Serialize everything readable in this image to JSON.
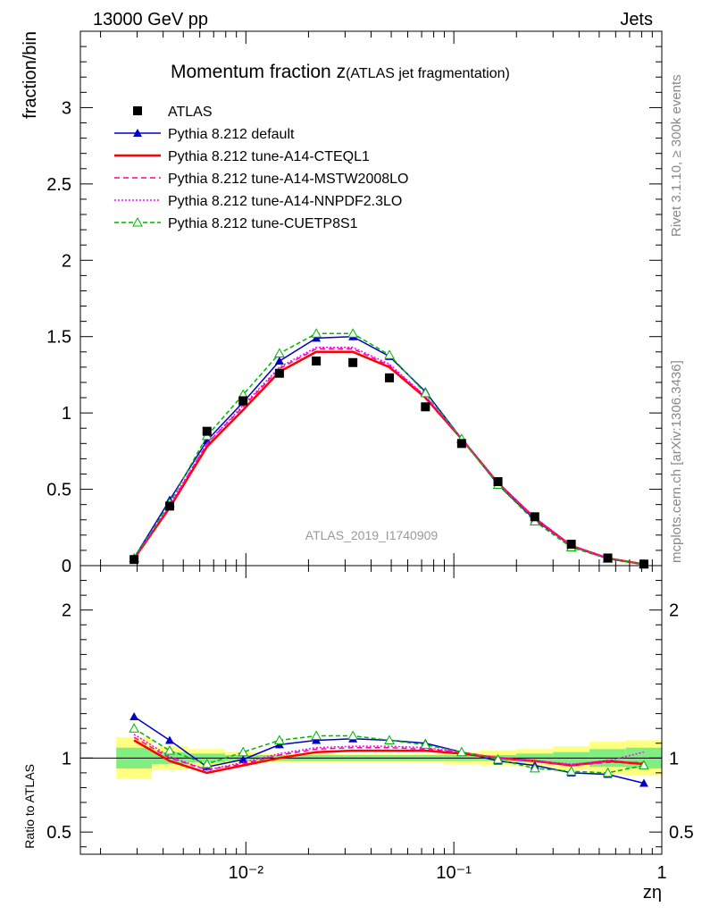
{
  "header": {
    "left": "13000 GeV pp",
    "right": "Jets",
    "side_rivet": "Rivet 3.1.10, ≥ 300k events",
    "side_site": "mcplots.cern.ch [arXiv:1306.3436]"
  },
  "chart_data": {
    "type": "line",
    "title_main": "Momentum fraction z",
    "title_sub": "(ATLAS jet fragmentation)",
    "analysis_label": "ATLAS_2019_I1740909",
    "xlabel": "zη",
    "ylabel": "fraction/bin",
    "ratio_ylabel": "Ratio to ATLAS",
    "xscale": "log",
    "xlim": [
      0.0016,
      1.0
    ],
    "ylim": [
      0,
      3.5
    ],
    "ratio_ylim": [
      0.35,
      2.3
    ],
    "x_tick_labels": [
      "10⁻²",
      "10⁻¹",
      "1"
    ],
    "y_tick_labels": [
      "0",
      "0.5",
      "1",
      "1.5",
      "2",
      "2.5",
      "3"
    ],
    "ratio_y_tick_labels": [
      "0.5",
      "1",
      "2"
    ],
    "x": [
      0.0029,
      0.0043,
      0.0065,
      0.0097,
      0.0145,
      0.0218,
      0.0327,
      0.049,
      0.073,
      0.109,
      0.163,
      0.245,
      0.367,
      0.55,
      0.82
    ],
    "data": {
      "name": "ATLAS",
      "values": [
        0.04,
        0.39,
        0.88,
        1.08,
        1.26,
        1.34,
        1.33,
        1.23,
        1.04,
        0.8,
        0.55,
        0.32,
        0.14,
        0.05,
        0.01
      ]
    },
    "series": [
      {
        "name": "Pythia 8.212 default",
        "color": "#0000c8",
        "dash": "",
        "marker": "triangle",
        "values": [
          0.05,
          0.43,
          0.82,
          1.07,
          1.34,
          1.49,
          1.5,
          1.37,
          1.14,
          0.83,
          0.53,
          0.3,
          0.13,
          0.045,
          0.008
        ],
        "ratio": [
          1.28,
          1.12,
          0.94,
          0.99,
          1.09,
          1.12,
          1.13,
          1.12,
          1.1,
          1.04,
          0.98,
          0.95,
          0.9,
          0.89,
          0.83
        ]
      },
      {
        "name": "Pythia 8.212 tune-A14-CTEQL1",
        "color": "#ff0000",
        "dash": "",
        "marker": "none",
        "values": [
          0.045,
          0.38,
          0.78,
          1.02,
          1.27,
          1.4,
          1.4,
          1.3,
          1.1,
          0.83,
          0.54,
          0.31,
          0.13,
          0.048,
          0.009
        ],
        "ratio": [
          1.12,
          0.98,
          0.9,
          0.95,
          1.0,
          1.04,
          1.05,
          1.05,
          1.05,
          1.03,
          1.0,
          0.98,
          0.95,
          0.98,
          0.96
        ]
      },
      {
        "name": "Pythia 8.212 tune-A14-MSTW2008LO",
        "color": "#ff00a0",
        "dash": "6,4",
        "marker": "none",
        "values": [
          0.046,
          0.39,
          0.8,
          1.04,
          1.29,
          1.42,
          1.42,
          1.31,
          1.11,
          0.83,
          0.54,
          0.31,
          0.13,
          0.048,
          0.01
        ],
        "ratio": [
          1.14,
          1.0,
          0.92,
          0.96,
          1.02,
          1.06,
          1.07,
          1.07,
          1.06,
          1.04,
          1.0,
          0.98,
          0.95,
          0.97,
          0.97
        ]
      },
      {
        "name": "Pythia 8.212 tune-A14-NNPDF2.3LO",
        "color": "#ff00ff",
        "dash": "2,2",
        "marker": "none",
        "values": [
          0.047,
          0.4,
          0.8,
          1.05,
          1.3,
          1.43,
          1.43,
          1.32,
          1.11,
          0.83,
          0.54,
          0.31,
          0.13,
          0.048,
          0.01
        ],
        "ratio": [
          1.16,
          1.01,
          0.92,
          0.97,
          1.03,
          1.07,
          1.08,
          1.08,
          1.07,
          1.04,
          1.0,
          0.98,
          0.96,
          0.98,
          1.04
        ]
      },
      {
        "name": "Pythia 8.212 tune-CUETP8S1",
        "color": "#00b400",
        "dash": "5,3",
        "marker": "open-triangle",
        "values": [
          0.048,
          0.41,
          0.85,
          1.12,
          1.39,
          1.52,
          1.52,
          1.38,
          1.13,
          0.83,
          0.53,
          0.29,
          0.12,
          0.045,
          0.009
        ],
        "ratio": [
          1.2,
          1.05,
          0.96,
          1.04,
          1.12,
          1.15,
          1.15,
          1.12,
          1.09,
          1.04,
          0.99,
          0.93,
          0.91,
          0.9,
          0.95
        ]
      }
    ],
    "ratio_band_green": [
      0.07,
      0.04,
      0.03,
      0.02,
      0.02,
      0.02,
      0.02,
      0.02,
      0.02,
      0.02,
      0.02,
      0.03,
      0.04,
      0.06,
      0.07
    ],
    "ratio_band_yellow": [
      0.14,
      0.08,
      0.06,
      0.04,
      0.03,
      0.03,
      0.03,
      0.03,
      0.03,
      0.04,
      0.05,
      0.06,
      0.08,
      0.11,
      0.12
    ]
  }
}
